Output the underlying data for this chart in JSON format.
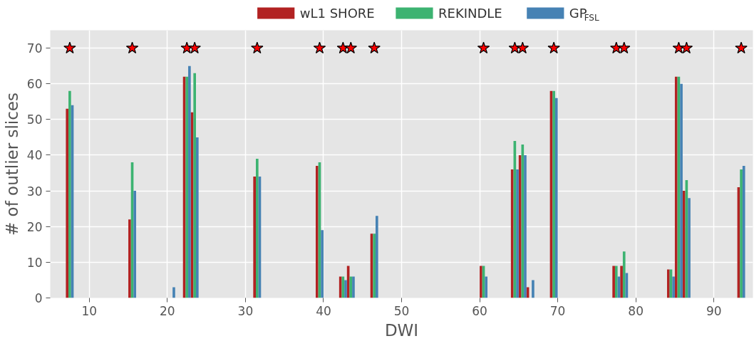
{
  "chart_data": {
    "type": "bar",
    "xlabel": "DWI",
    "ylabel": "# of outlier slices",
    "x": [
      7.5,
      15.5,
      20.5,
      22.5,
      23.5,
      31.5,
      39.5,
      42.5,
      43.5,
      46.5,
      60.5,
      64.5,
      65.5,
      66.5,
      69.5,
      77.5,
      78.5,
      84.5,
      85.5,
      86.5,
      93.5
    ],
    "series": [
      {
        "name": "wL1 SHORE",
        "color": "#b22222",
        "values": [
          53,
          22,
          0,
          62,
          52,
          34,
          37,
          6,
          9,
          18,
          9,
          36,
          40,
          3,
          58,
          9,
          9,
          8,
          62,
          30,
          31
        ]
      },
      {
        "name": "REKINDLE",
        "color": "#3cb371",
        "values": [
          58,
          38,
          0,
          62,
          63,
          39,
          38,
          6,
          6,
          18,
          9,
          44,
          43,
          0,
          58,
          9,
          13,
          8,
          62,
          33,
          36
        ]
      },
      {
        "name": "GP$_{FSL}$",
        "color": "#4682b4",
        "values": [
          54,
          30,
          3,
          65,
          45,
          34,
          19,
          5,
          6,
          23,
          6,
          36,
          40,
          5,
          56,
          6,
          7,
          6,
          60,
          28,
          37
        ]
      },
      {
        "type": "scatter",
        "marker": "star",
        "color": "#ff0000",
        "x": [
          7.5,
          15.5,
          22.5,
          23.5,
          31.5,
          39.5,
          42.5,
          43.5,
          46.5,
          60.5,
          64.5,
          65.5,
          69.5,
          77.5,
          78.5,
          85.5,
          86.5,
          93.5
        ],
        "values": [
          70,
          70,
          70,
          70,
          70,
          70,
          70,
          70,
          70,
          70,
          70,
          70,
          70,
          70,
          70,
          70,
          70,
          70
        ]
      }
    ],
    "xlim": [
      5,
      95
    ],
    "xticks": [
      10,
      20,
      30,
      40,
      50,
      60,
      70,
      80,
      90
    ],
    "ylim": [
      0,
      75
    ],
    "yticks": [
      0,
      10,
      20,
      30,
      40,
      50,
      60,
      70
    ],
    "grid": true,
    "legend": "top"
  }
}
